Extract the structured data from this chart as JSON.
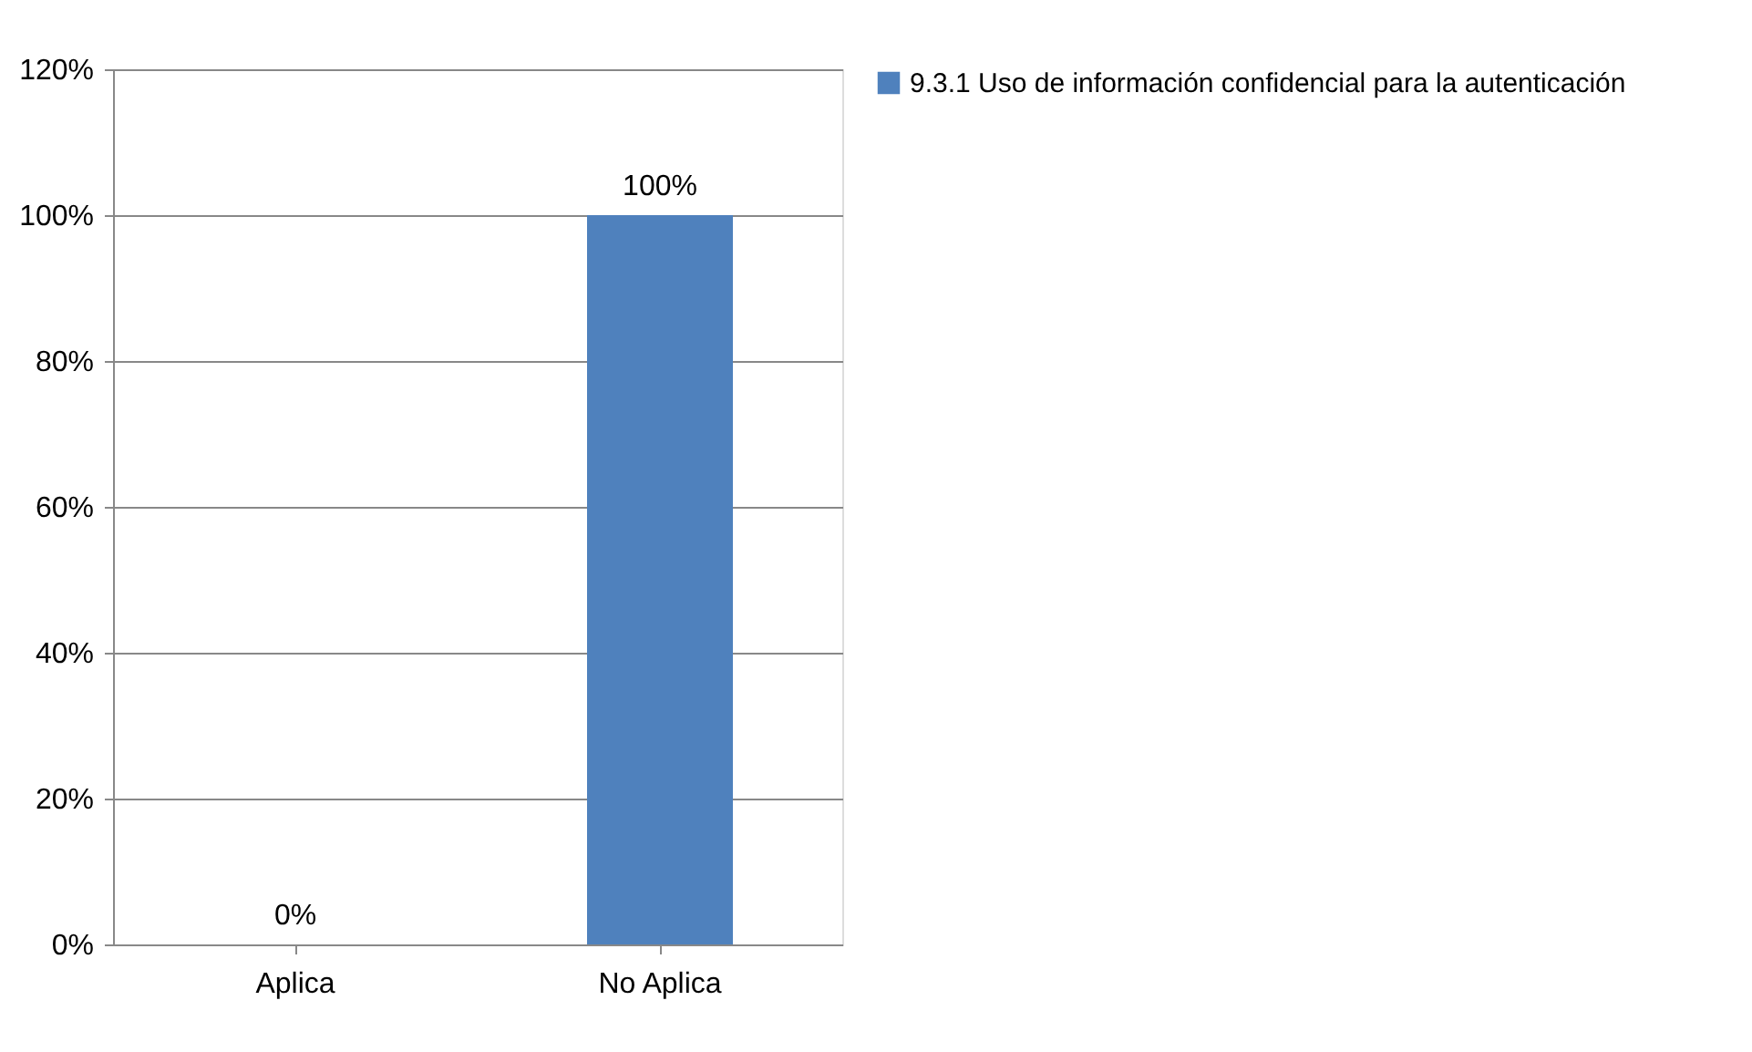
{
  "chart_data": {
    "type": "bar",
    "categories": [
      "Aplica",
      "No Aplica"
    ],
    "series": [
      {
        "name": "9.3.1 Uso de información confidencial para la autenticación",
        "color": "#4f81bd",
        "values": [
          0,
          100
        ]
      }
    ],
    "value_labels": [
      "0%",
      "100%"
    ],
    "ylim": [
      0,
      120
    ],
    "yticks": [
      {
        "value": 0,
        "label": "0%"
      },
      {
        "value": 20,
        "label": "20%"
      },
      {
        "value": 40,
        "label": "40%"
      },
      {
        "value": 60,
        "label": "60%"
      },
      {
        "value": 80,
        "label": "80%"
      },
      {
        "value": 100,
        "label": "100%"
      },
      {
        "value": 120,
        "label": "120%"
      }
    ],
    "grid": "y",
    "legend": "right"
  }
}
